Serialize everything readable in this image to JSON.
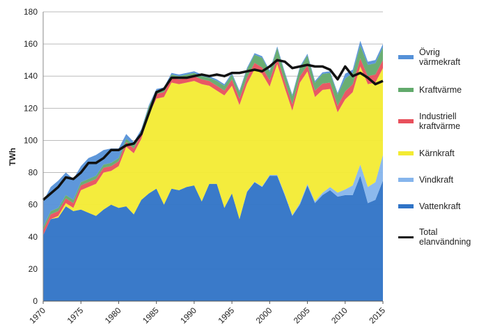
{
  "chart_data": {
    "type": "stacked_area",
    "y_label": "TWh",
    "x": [
      1970,
      1971,
      1972,
      1973,
      1974,
      1975,
      1976,
      1977,
      1978,
      1979,
      1980,
      1981,
      1982,
      1983,
      1984,
      1985,
      1986,
      1987,
      1988,
      1989,
      1990,
      1991,
      1992,
      1993,
      1994,
      1995,
      1996,
      1997,
      1998,
      1999,
      2000,
      2001,
      2002,
      2003,
      2004,
      2005,
      2006,
      2007,
      2008,
      2009,
      2010,
      2011,
      2012,
      2013,
      2014,
      2015
    ],
    "xlim": [
      1970,
      2015
    ],
    "xticks": [
      1970,
      1975,
      1980,
      1985,
      1990,
      1995,
      2000,
      2005,
      2010,
      2015
    ],
    "ylim": [
      0,
      180
    ],
    "yticks": [
      0,
      20,
      40,
      60,
      80,
      100,
      120,
      140,
      160,
      180
    ],
    "grid": true,
    "series": [
      {
        "name": "Vattenkraft",
        "color": "#2f73c6",
        "values": [
          41,
          51,
          52,
          59,
          56,
          57,
          55,
          53,
          57,
          60,
          58,
          59,
          54,
          63,
          67,
          70,
          60,
          70,
          69,
          71,
          72,
          62,
          73,
          73,
          58,
          67,
          51,
          68,
          74,
          71,
          78,
          78,
          66,
          53,
          60,
          72,
          61,
          66,
          69,
          65,
          66,
          66,
          78,
          61,
          63,
          75
        ]
      },
      {
        "name": "Vindkraft",
        "color": "#86b5ec",
        "values": [
          0,
          0,
          0,
          0,
          0,
          0,
          0,
          0,
          0,
          0,
          0,
          0,
          0,
          0,
          0,
          0,
          0,
          0,
          0,
          0,
          0,
          0,
          0,
          0,
          0,
          0,
          0,
          0.2,
          0.3,
          0.4,
          0.5,
          0.5,
          0.6,
          0.5,
          0.9,
          0.9,
          1,
          1.4,
          2,
          2.5,
          3.5,
          6,
          7,
          10,
          11,
          16
        ]
      },
      {
        "name": "Kärnkraft",
        "color": "#f3eb33",
        "values": [
          0,
          0,
          1,
          2,
          2,
          12,
          16,
          20,
          23,
          21,
          26,
          37,
          38,
          38,
          49,
          56,
          67,
          66,
          66,
          65,
          65,
          73,
          61,
          58,
          70,
          67,
          71,
          67,
          70,
          70,
          55,
          69,
          66,
          65,
          75,
          70,
          65,
          64,
          61,
          50,
          56,
          58,
          61,
          64,
          62,
          54
        ]
      },
      {
        "name": "Industriell kraftvärme",
        "color": "#e8505c",
        "values": [
          3,
          3,
          3,
          3,
          3,
          3,
          3,
          3,
          3,
          3,
          3,
          3,
          3,
          3,
          3,
          3,
          3,
          3,
          3,
          3,
          3,
          3,
          3,
          3,
          3,
          4,
          4,
          4,
          4,
          4,
          4,
          4,
          4,
          4,
          4,
          4,
          4,
          4,
          4,
          4,
          5,
          5,
          5,
          5,
          5,
          5
        ]
      },
      {
        "name": "Kraftvärme",
        "color": "#62aa6c",
        "values": [
          2,
          2,
          2,
          2,
          2,
          2,
          2,
          2,
          2,
          2,
          2,
          2,
          2,
          2,
          2,
          2,
          2,
          2,
          2,
          2,
          2,
          2,
          2,
          3,
          3,
          3,
          4,
          5,
          5,
          6,
          5,
          6,
          5,
          5,
          5,
          6,
          5,
          6,
          6,
          7,
          8,
          7,
          8,
          7,
          7,
          8
        ]
      },
      {
        "name": "Övrig värmekraft",
        "color": "#5591d8",
        "values": [
          16,
          15,
          17,
          14,
          13,
          10,
          13,
          13,
          9,
          9,
          6,
          3,
          2,
          1,
          1,
          1,
          1,
          1,
          1,
          1,
          1,
          1,
          1,
          1,
          1,
          1,
          1,
          1,
          1,
          1,
          1,
          1,
          1,
          1,
          1,
          1,
          1,
          1,
          1,
          1,
          3,
          2,
          3,
          2,
          2,
          2
        ]
      }
    ],
    "line": {
      "name": "Total elanvändning",
      "color": "#111111",
      "values": [
        63,
        67,
        71,
        77,
        76,
        80,
        86,
        86,
        89,
        94,
        94,
        97,
        98,
        104,
        117,
        130,
        132,
        139,
        139,
        139,
        140,
        141,
        140,
        141,
        140,
        142,
        142,
        143,
        144,
        143,
        146,
        150,
        149,
        145,
        146,
        147,
        146,
        146,
        144,
        138,
        146,
        140,
        142,
        139,
        135,
        137
      ]
    }
  }
}
